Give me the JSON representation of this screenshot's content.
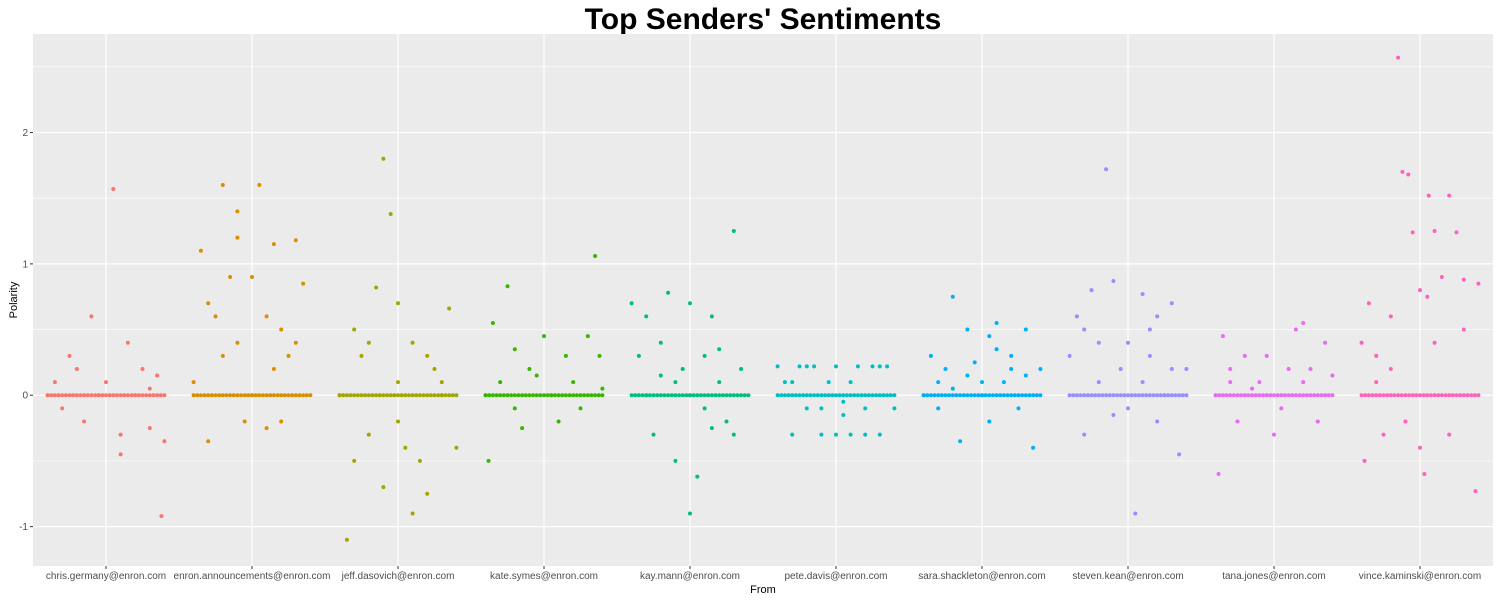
{
  "chart_data": {
    "type": "scatter",
    "title": "Top Senders' Sentiments",
    "xlabel": "From",
    "ylabel": "Polarity",
    "ylim": [
      -1.3,
      2.75
    ],
    "yticks": [
      -1,
      0,
      1,
      2
    ],
    "grid": true,
    "legend": "none",
    "categories": [
      "chris.germany@enron.com",
      "enron.announcements@enron.com",
      "jeff.dasovich@enron.com",
      "kate.symes@enron.com",
      "kay.mann@enron.com",
      "pete.davis@enron.com",
      "sara.shackleton@enron.com",
      "steven.kean@enron.com",
      "tana.jones@enron.com",
      "vince.kaminski@enron.com"
    ],
    "series": [
      {
        "color": "#F8766D",
        "values": [
          [
            -0.4,
            0
          ],
          [
            -0.35,
            0.1
          ],
          [
            -0.3,
            -0.1
          ],
          [
            -0.2,
            0.2
          ],
          [
            -0.1,
            0.6
          ],
          [
            0,
            0.1
          ],
          [
            0.05,
            1.57
          ],
          [
            0.1,
            -0.3
          ],
          [
            0.2,
            0
          ],
          [
            0.3,
            -0.25
          ],
          [
            0.35,
            0.15
          ],
          [
            0.4,
            -0.35
          ],
          [
            -0.25,
            0.3
          ],
          [
            0.15,
            0.4
          ],
          [
            0.38,
            -0.92
          ],
          [
            0.1,
            -0.45
          ],
          [
            -0.05,
            0
          ],
          [
            0.25,
            0.2
          ],
          [
            -0.15,
            -0.2
          ],
          [
            0.3,
            0.05
          ]
        ]
      },
      {
        "color": "#D89000",
        "values": [
          [
            -0.4,
            0.1
          ],
          [
            -0.35,
            1.1
          ],
          [
            -0.3,
            0.7
          ],
          [
            -0.25,
            0.6
          ],
          [
            -0.2,
            1.6
          ],
          [
            -0.15,
            0.9
          ],
          [
            -0.1,
            1.2
          ],
          [
            -0.05,
            -0.2
          ],
          [
            0,
            0.9
          ],
          [
            0.05,
            1.6
          ],
          [
            0.1,
            -0.25
          ],
          [
            0.15,
            1.15
          ],
          [
            0.2,
            0.5
          ],
          [
            0.25,
            0.3
          ],
          [
            0.3,
            1.18
          ],
          [
            0.35,
            0.85
          ],
          [
            -0.1,
            0.4
          ],
          [
            0.15,
            0.2
          ],
          [
            -0.3,
            -0.35
          ],
          [
            0.1,
            0.6
          ],
          [
            0,
            0
          ],
          [
            0.2,
            -0.2
          ],
          [
            -0.2,
            0.3
          ],
          [
            0.3,
            0.4
          ],
          [
            -0.1,
            1.4
          ]
        ]
      },
      {
        "color": "#A3A500",
        "values": [
          [
            -0.4,
            0
          ],
          [
            -0.3,
            0.5
          ],
          [
            -0.35,
            -1.1
          ],
          [
            -0.25,
            0.3
          ],
          [
            -0.2,
            -0.3
          ],
          [
            -0.15,
            0.82
          ],
          [
            -0.1,
            1.8
          ],
          [
            -0.05,
            1.38
          ],
          [
            0,
            0.7
          ],
          [
            0.05,
            -0.4
          ],
          [
            0.1,
            -0.9
          ],
          [
            0.15,
            -0.5
          ],
          [
            0.2,
            -0.75
          ],
          [
            0.25,
            0.2
          ],
          [
            0.3,
            0
          ],
          [
            0.35,
            0.66
          ],
          [
            0.4,
            -0.4
          ],
          [
            0,
            0.1
          ],
          [
            -0.2,
            0.4
          ],
          [
            0.1,
            0.4
          ],
          [
            -0.3,
            -0.5
          ],
          [
            0.2,
            0.3
          ],
          [
            0,
            -0.2
          ],
          [
            -0.1,
            -0.7
          ],
          [
            0.3,
            0.1
          ]
        ]
      },
      {
        "color": "#39B600",
        "values": [
          [
            -0.4,
            0
          ],
          [
            -0.38,
            -0.5
          ],
          [
            -0.35,
            0.55
          ],
          [
            -0.3,
            0.1
          ],
          [
            -0.25,
            0.83
          ],
          [
            -0.2,
            0.35
          ],
          [
            -0.1,
            0.2
          ],
          [
            0,
            0.45
          ],
          [
            0.1,
            -0.2
          ],
          [
            0.2,
            0.1
          ],
          [
            0.35,
            1.06
          ],
          [
            0.4,
            0.05
          ],
          [
            0.3,
            0.45
          ],
          [
            -0.15,
            -0.25
          ],
          [
            0.05,
            0
          ],
          [
            0.25,
            -0.1
          ],
          [
            -0.05,
            0.15
          ],
          [
            0.15,
            0.3
          ],
          [
            -0.2,
            -0.1
          ],
          [
            0.38,
            0.3
          ]
        ]
      },
      {
        "color": "#00BF7D",
        "values": [
          [
            -0.4,
            0.7
          ],
          [
            -0.35,
            0.3
          ],
          [
            -0.3,
            0.6
          ],
          [
            -0.25,
            -0.3
          ],
          [
            -0.2,
            0.4
          ],
          [
            -0.15,
            0.78
          ],
          [
            -0.1,
            -0.5
          ],
          [
            -0.05,
            0.2
          ],
          [
            0,
            -0.9
          ],
          [
            0.05,
            -0.62
          ],
          [
            0.1,
            0.3
          ],
          [
            0.15,
            0.6
          ],
          [
            0.2,
            0.1
          ],
          [
            0.25,
            -0.2
          ],
          [
            0.3,
            1.25
          ],
          [
            0.35,
            0.2
          ],
          [
            0,
            0
          ],
          [
            -0.1,
            0.1
          ],
          [
            0.1,
            -0.1
          ],
          [
            0.2,
            0.35
          ],
          [
            -0.3,
            0
          ],
          [
            0.3,
            -0.3
          ],
          [
            0,
            0.7
          ],
          [
            -0.2,
            0.15
          ],
          [
            0.15,
            -0.25
          ]
        ]
      },
      {
        "color": "#00BFC4",
        "values": [
          [
            -0.4,
            0.22
          ],
          [
            -0.35,
            0.1
          ],
          [
            -0.3,
            -0.3
          ],
          [
            -0.25,
            0.22
          ],
          [
            -0.2,
            -0.1
          ],
          [
            -0.15,
            0.22
          ],
          [
            -0.1,
            -0.3
          ],
          [
            -0.05,
            0.1
          ],
          [
            0,
            0.22
          ],
          [
            0.05,
            -0.15
          ],
          [
            0.1,
            -0.3
          ],
          [
            0.15,
            0.22
          ],
          [
            0.2,
            -0.1
          ],
          [
            0.25,
            0.22
          ],
          [
            0.3,
            -0.3
          ],
          [
            0.35,
            0.22
          ],
          [
            0.4,
            -0.1
          ],
          [
            0,
            -0.3
          ],
          [
            -0.2,
            0.22
          ],
          [
            0.2,
            -0.3
          ],
          [
            -0.1,
            -0.1
          ],
          [
            0.1,
            0.1
          ],
          [
            0.3,
            0.22
          ],
          [
            -0.3,
            0.1
          ],
          [
            0.05,
            -0.05
          ]
        ]
      },
      {
        "color": "#00B0F6",
        "values": [
          [
            -0.4,
            0
          ],
          [
            -0.35,
            0.3
          ],
          [
            -0.3,
            0.1
          ],
          [
            -0.25,
            0.2
          ],
          [
            -0.2,
            0.75
          ],
          [
            -0.15,
            -0.35
          ],
          [
            -0.1,
            0.5
          ],
          [
            -0.05,
            0.25
          ],
          [
            0,
            0
          ],
          [
            0.05,
            0.45
          ],
          [
            0.1,
            0.55
          ],
          [
            0.15,
            0.1
          ],
          [
            0.2,
            0.3
          ],
          [
            0.25,
            -0.1
          ],
          [
            0.3,
            0.5
          ],
          [
            0.35,
            -0.4
          ],
          [
            0.4,
            0.2
          ],
          [
            0,
            0.1
          ],
          [
            -0.2,
            0.05
          ],
          [
            0.2,
            0.2
          ],
          [
            -0.1,
            0.15
          ],
          [
            0.1,
            0.35
          ],
          [
            -0.3,
            -0.1
          ],
          [
            0.3,
            0.15
          ],
          [
            0.05,
            -0.2
          ]
        ]
      },
      {
        "color": "#9590FF",
        "values": [
          [
            -0.4,
            0.3
          ],
          [
            -0.35,
            0.6
          ],
          [
            -0.3,
            -0.3
          ],
          [
            -0.25,
            0.8
          ],
          [
            -0.2,
            0.4
          ],
          [
            -0.15,
            1.72
          ],
          [
            -0.1,
            0.87
          ],
          [
            -0.05,
            0.2
          ],
          [
            0,
            -0.1
          ],
          [
            0.05,
            -0.9
          ],
          [
            0.1,
            0.77
          ],
          [
            0.15,
            0.3
          ],
          [
            0.2,
            0.6
          ],
          [
            0.25,
            0
          ],
          [
            0.3,
            0.7
          ],
          [
            0.35,
            -0.45
          ],
          [
            0.4,
            0.2
          ],
          [
            0,
            0.4
          ],
          [
            -0.2,
            0.1
          ],
          [
            0.2,
            -0.2
          ],
          [
            -0.3,
            0.5
          ],
          [
            0.1,
            0.1
          ],
          [
            0.3,
            0.2
          ],
          [
            -0.1,
            -0.15
          ],
          [
            0.15,
            0.5
          ]
        ]
      },
      {
        "color": "#E76BF3",
        "values": [
          [
            -0.4,
            0
          ],
          [
            -0.38,
            -0.6
          ],
          [
            -0.35,
            0.45
          ],
          [
            -0.3,
            0.1
          ],
          [
            -0.25,
            -0.2
          ],
          [
            -0.2,
            0.3
          ],
          [
            -0.1,
            0.1
          ],
          [
            0,
            -0.3
          ],
          [
            0.1,
            0.2
          ],
          [
            0.15,
            0.5
          ],
          [
            0.2,
            0.55
          ],
          [
            0.25,
            0.2
          ],
          [
            0.3,
            -0.2
          ],
          [
            0.35,
            0.4
          ],
          [
            0.4,
            0.15
          ],
          [
            -0.05,
            0.3
          ],
          [
            0.05,
            -0.1
          ],
          [
            -0.15,
            0.05
          ],
          [
            0.2,
            0.1
          ],
          [
            -0.3,
            0.2
          ]
        ]
      },
      {
        "color": "#FF62BC",
        "values": [
          [
            -0.4,
            0.4
          ],
          [
            -0.38,
            -0.5
          ],
          [
            -0.35,
            0.7
          ],
          [
            -0.3,
            0.3
          ],
          [
            -0.25,
            -0.3
          ],
          [
            -0.2,
            0.6
          ],
          [
            -0.15,
            2.57
          ],
          [
            -0.12,
            1.7
          ],
          [
            -0.08,
            1.68
          ],
          [
            -0.05,
            1.24
          ],
          [
            0,
            0.8
          ],
          [
            0.03,
            -0.6
          ],
          [
            0.06,
            1.52
          ],
          [
            0.1,
            1.25
          ],
          [
            0.15,
            0.9
          ],
          [
            0.2,
            1.52
          ],
          [
            0.25,
            1.24
          ],
          [
            0.3,
            0.88
          ],
          [
            0.38,
            -0.73
          ],
          [
            0.4,
            0.85
          ],
          [
            0,
            -0.4
          ],
          [
            -0.2,
            0.2
          ],
          [
            0.2,
            -0.3
          ],
          [
            0.1,
            0.4
          ],
          [
            -0.1,
            -0.2
          ],
          [
            0.3,
            0.5
          ],
          [
            0.05,
            0.75
          ],
          [
            -0.3,
            0.1
          ]
        ]
      }
    ]
  }
}
